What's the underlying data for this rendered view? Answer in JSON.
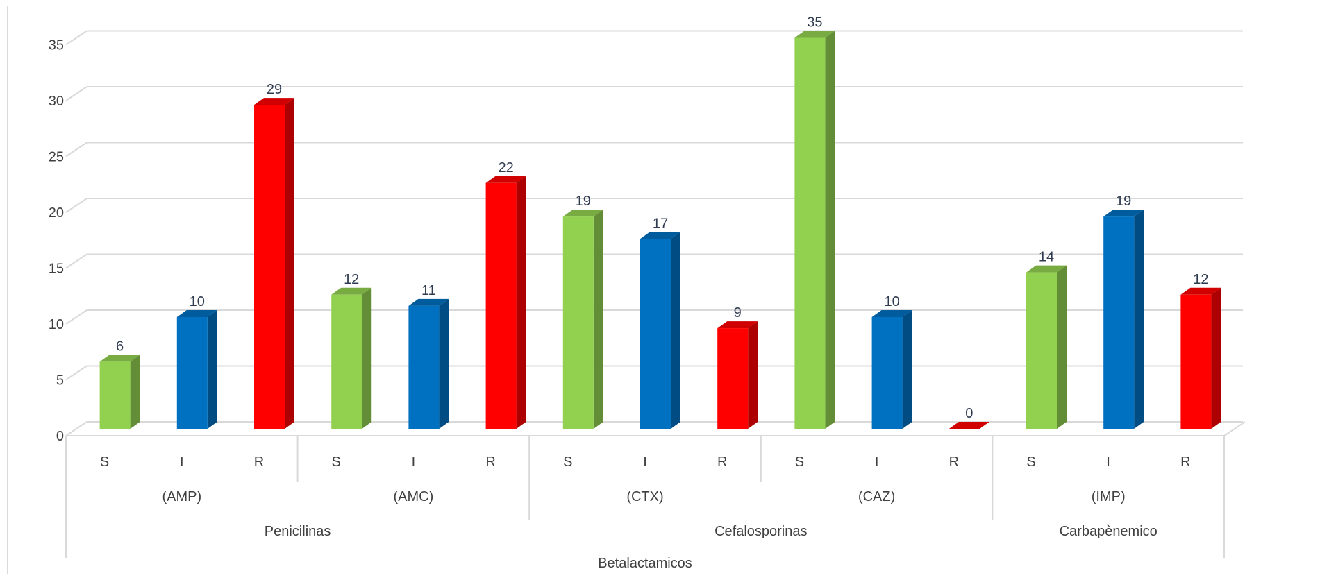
{
  "chart_data": {
    "type": "bar",
    "style": "3d-clustered-column",
    "ylim": [
      0,
      35
    ],
    "yticks": [
      0,
      5,
      10,
      15,
      20,
      25,
      30,
      35
    ],
    "grid": true,
    "legend": "none",
    "categories": [
      "S",
      "I",
      "R",
      "S",
      "I",
      "R",
      "S",
      "I",
      "R",
      "S",
      "I",
      "R",
      "S",
      "I",
      "R"
    ],
    "values": [
      6,
      10,
      29,
      12,
      11,
      22,
      19,
      17,
      9,
      35,
      10,
      0,
      14,
      19,
      12
    ],
    "colors": {
      "S": "#92d050",
      "I": "#0070c0",
      "R": "#ff0000"
    },
    "antibiotics": [
      {
        "label": "(AMP)",
        "span": [
          0,
          2
        ]
      },
      {
        "label": "(AMC)",
        "span": [
          3,
          5
        ]
      },
      {
        "label": "(CTX)",
        "span": [
          6,
          8
        ]
      },
      {
        "label": "(CAZ)",
        "span": [
          9,
          11
        ]
      },
      {
        "label": "(IMP)",
        "span": [
          12,
          14
        ]
      }
    ],
    "families": [
      {
        "label": "Penicilinas",
        "span": [
          0,
          5
        ]
      },
      {
        "label": "Cefalosporinas",
        "span": [
          6,
          11
        ]
      },
      {
        "label": "Carbapènemico",
        "span": [
          12,
          14
        ]
      }
    ],
    "group": {
      "label": "Betalactamicos",
      "span": [
        0,
        14
      ]
    }
  }
}
